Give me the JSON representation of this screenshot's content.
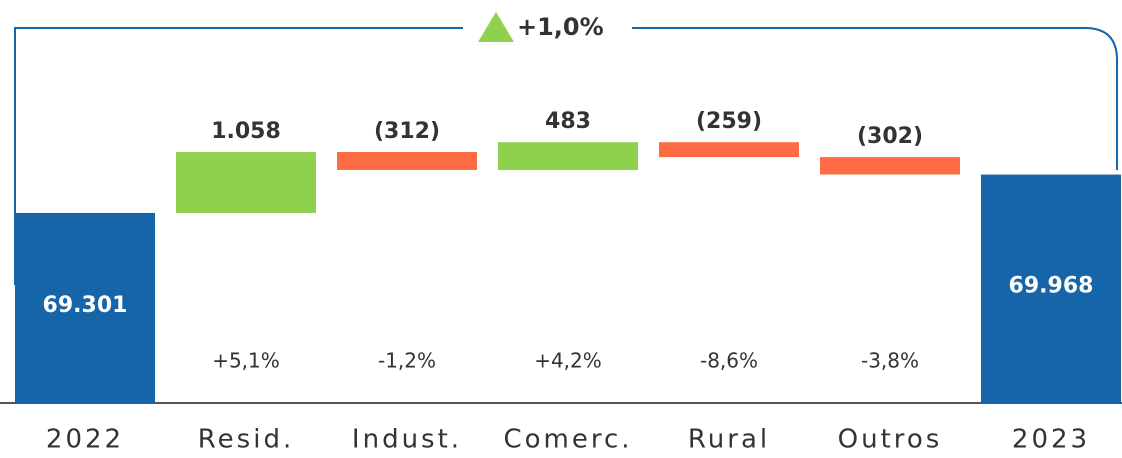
{
  "chart_data": {
    "type": "waterfall",
    "categories": [
      "2022",
      "Resid.",
      "Indust.",
      "Comerc.",
      "Rural",
      "Outros",
      "2023"
    ],
    "measures": [
      "total",
      "relative",
      "relative",
      "relative",
      "relative",
      "relative",
      "total"
    ],
    "values": [
      69301,
      1058,
      -312,
      483,
      -259,
      -302,
      69968
    ],
    "value_labels": [
      "69.301",
      "1.058",
      "(312)",
      "483",
      "(259)",
      "(302)",
      "69.968"
    ],
    "change_pct": [
      null,
      5.1,
      -1.2,
      4.2,
      -8.6,
      -3.8,
      null
    ],
    "change_pct_labels": [
      null,
      "+5,1%",
      "-1,2%",
      "+4,2%",
      "-8,6%",
      "-3,8%",
      null
    ],
    "total_change": 1.0,
    "total_change_label": "+1,0%",
    "colors": {
      "total": "#1565a8",
      "increase": "#8fd14f",
      "decrease": "#ff6b45"
    },
    "ylim": [
      66000,
      73000
    ]
  }
}
